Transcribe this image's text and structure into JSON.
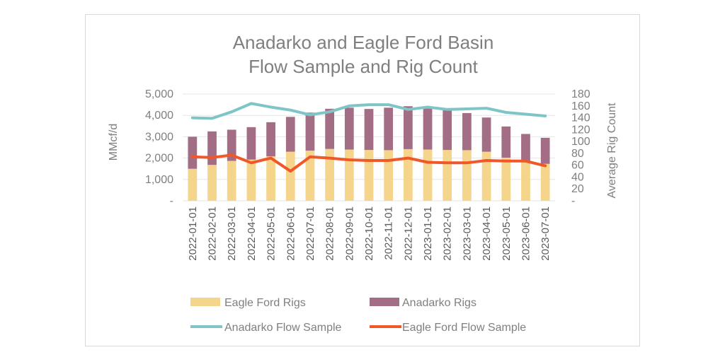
{
  "chart_data": {
    "type": "bar",
    "title_lines": [
      "Anadarko and Eagle Ford Basin",
      "Flow Sample and Rig Count"
    ],
    "ylabel": "MMcf/d",
    "y2label": "Average Rig Count",
    "ylim": [
      0,
      5000
    ],
    "y2lim": [
      0,
      180
    ],
    "y_ticks": [
      "-",
      "1,000",
      "2,000",
      "3,000",
      "4,000",
      "5,000"
    ],
    "y2_ticks": [
      "-",
      "20",
      "40",
      "60",
      "80",
      "100",
      "120",
      "140",
      "160",
      "180"
    ],
    "grid": true,
    "legend_position": "bottom",
    "categories": [
      "2022-01-01",
      "2022-02-01",
      "2022-03-01",
      "2022-04-01",
      "2022-05-01",
      "2022-06-01",
      "2022-07-01",
      "2022-08-01",
      "2022-09-01",
      "2022-10-01",
      "2022-11-01",
      "2022-12-01",
      "2023-01-01",
      "2023-02-01",
      "2023-03-01",
      "2023-04-01",
      "2023-05-01",
      "2023-06-01",
      "2023-07-01"
    ],
    "series": [
      {
        "name": "Eagle Ford Rigs",
        "kind": "bar",
        "axis": "left",
        "color": "#f5d58b",
        "values": [
          1500,
          1680,
          1870,
          1930,
          2080,
          2300,
          2350,
          2430,
          2400,
          2380,
          2370,
          2420,
          2400,
          2380,
          2370,
          2300,
          2020,
          1860,
          1730
        ]
      },
      {
        "name": "Anadarko Rigs",
        "kind": "bar",
        "axis": "left",
        "color": "#a26d85",
        "values": [
          1500,
          1570,
          1460,
          1520,
          1600,
          1630,
          1780,
          1880,
          1960,
          1920,
          1990,
          2010,
          1920,
          1860,
          1740,
          1600,
          1460,
          1270,
          1220
        ]
      },
      {
        "name": "Anadarko Flow Sample",
        "kind": "line",
        "axis": "right",
        "color": "#7fc4c6",
        "values": [
          140,
          139,
          150,
          164,
          158,
          153,
          145,
          150,
          160,
          162,
          162,
          154,
          158,
          154,
          155,
          156,
          149,
          146,
          143
        ]
      },
      {
        "name": "Eagle Ford Flow Sample",
        "kind": "line",
        "axis": "right",
        "color": "#f0582a",
        "values": [
          74,
          73,
          77,
          64,
          72,
          50,
          74,
          72,
          69,
          68,
          68,
          72,
          65,
          64,
          64,
          68,
          67,
          67,
          59
        ]
      }
    ]
  }
}
